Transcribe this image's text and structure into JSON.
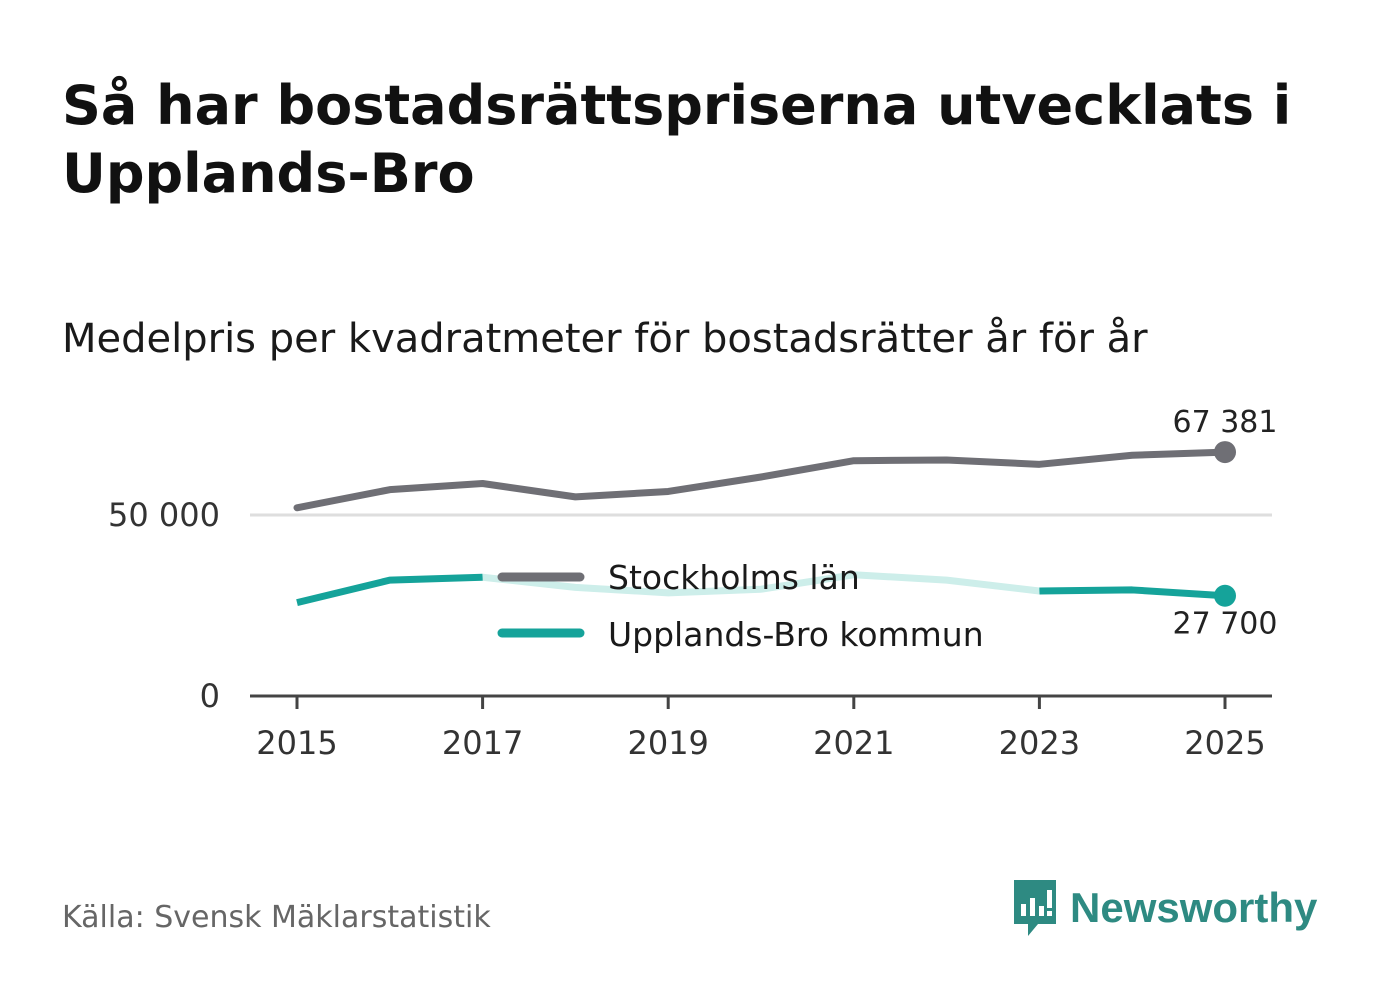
{
  "title": "Så har bostadsrättspriserna utvecklats i Upplands-Bro",
  "subtitle": "Medelpris per kvadratmeter för bostadsrätter år för år",
  "source": "Källa: Svensk Mäklarstatistik",
  "brand": {
    "name": "Newsworthy",
    "icon": "newsworthy-logo-icon"
  },
  "chart_data": {
    "type": "line",
    "title": "Medelpris per kvadratmeter för bostadsrätter år för år",
    "xlabel": "",
    "ylabel": "",
    "x": [
      2015,
      2016,
      2017,
      2018,
      2019,
      2020,
      2021,
      2022,
      2023,
      2024,
      2025
    ],
    "x_ticks": [
      "2015",
      "2017",
      "2019",
      "2021",
      "2023",
      "2025"
    ],
    "y_ticks": [
      {
        "value": 0,
        "label": "0"
      },
      {
        "value": 50000,
        "label": "50 000"
      }
    ],
    "ylim": [
      0,
      75000
    ],
    "grid": true,
    "legend_position": "center",
    "series": [
      {
        "name": "Stockholms län",
        "color": "#6f6f75",
        "values": [
          52000,
          57000,
          58700,
          55000,
          56500,
          60500,
          65000,
          65200,
          64000,
          66500,
          67381
        ],
        "end_label": "67 381"
      },
      {
        "name": "Upplands-Bro kommun",
        "color": "#15a39a",
        "faded_color": "#cdeeea",
        "values": [
          25800,
          32000,
          32800,
          30000,
          28500,
          29500,
          33500,
          32000,
          29000,
          29300,
          27700
        ],
        "end_label": "27 700"
      }
    ]
  }
}
